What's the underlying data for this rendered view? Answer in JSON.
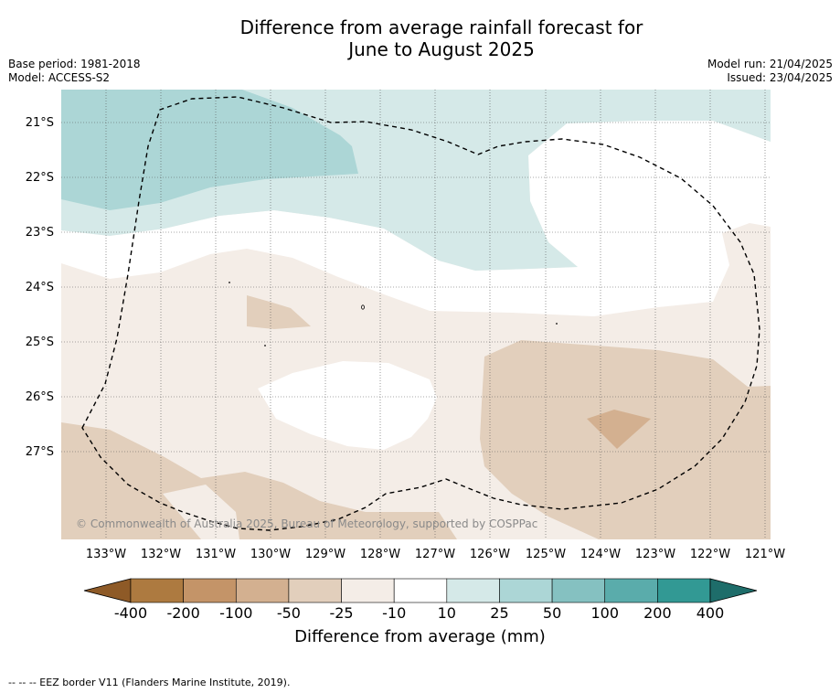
{
  "title_line1": "Difference from average rainfall forecast for",
  "title_line2": "June to August 2025",
  "meta_left": [
    "Base period: 1981-2018",
    "Model: ACCESS-S2"
  ],
  "meta_right": [
    "Model run: 21/04/2025",
    "Issued: 23/04/2025"
  ],
  "copyright": "© Commonwealth of Australia 2025, Bureau of Meteorology, supported by COSPPac",
  "lat_labels": [
    "21°S",
    "22°S",
    "23°S",
    "24°S",
    "25°S",
    "26°S",
    "27°S"
  ],
  "lon_labels": [
    "133°W",
    "132°W",
    "131°W",
    "130°W",
    "129°W",
    "128°W",
    "127°W",
    "126°W",
    "125°W",
    "124°W",
    "123°W",
    "122°W",
    "121°W"
  ],
  "colorbar": {
    "title": "Difference from average (mm)",
    "labels": [
      "-400",
      "-200",
      "-100",
      "-50",
      "-25",
      "-10",
      "10",
      "25",
      "50",
      "100",
      "200",
      "400"
    ],
    "colors": [
      "#ad7a40",
      "#c49468",
      "#d3b090",
      "#e2cfbc",
      "#f4ede7",
      "#ffffff",
      "#d5e9e8",
      "#acd6d6",
      "#85c1c1",
      "#5aacab",
      "#329994"
    ],
    "extend_low_color": "#8e5a27",
    "extend_high_color": "#1e6d6a"
  },
  "footnote": "--  --  -- EEZ border V11 (Flanders Marine Institute, 2019).",
  "icon_names": [
    "colorbar-extend-low-arrow",
    "colorbar-extend-high-arrow"
  ]
}
